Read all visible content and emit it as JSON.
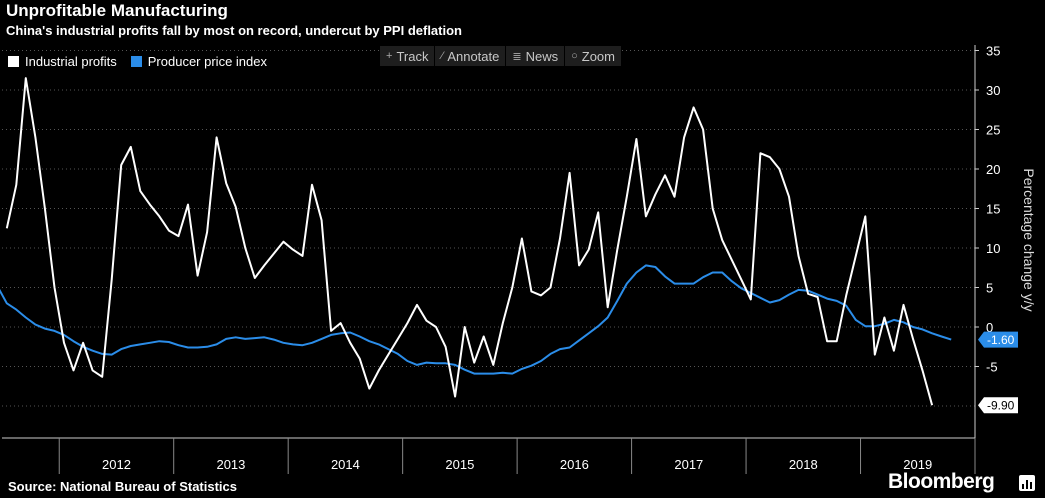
{
  "title": "Unprofitable Manufacturing",
  "subtitle": "China's industrial profits fall by most on record, undercut by PPI deflation",
  "toolbar": [
    {
      "icon": "crosshair-icon",
      "glyph": "+",
      "label": "Track"
    },
    {
      "icon": "pencil-icon",
      "glyph": "⁄",
      "label": "Annotate"
    },
    {
      "icon": "news-icon",
      "glyph": "≣",
      "label": "News"
    },
    {
      "icon": "magnifier-icon",
      "glyph": "○",
      "label": "Zoom"
    }
  ],
  "source": "Source: National Bureau of Statistics",
  "brand": "Bloomberg",
  "colors": {
    "profits": "#ffffff",
    "ppi": "#2b8de9",
    "grid": "#555555"
  },
  "chart_data": {
    "type": "line",
    "title": "Unprofitable Manufacturing",
    "subtitle": "China's industrial profits fall by most on record, undercut by PPI deflation",
    "ylabel": "Percentage change y/y",
    "xlabel": "",
    "ylim": [
      -14,
      35
    ],
    "yticks": [
      35,
      30,
      25,
      20,
      15,
      10,
      5,
      0,
      -5
    ],
    "tick_labels_y": [
      "35",
      "30",
      "25",
      "20",
      "15",
      "10",
      "5",
      "0",
      "-5"
    ],
    "grid": "horizontal dotted",
    "legend_position": "top-left",
    "x_start": "2011-06",
    "x_end": "2019-12",
    "year_labels": [
      "2012",
      "2013",
      "2014",
      "2015",
      "2016",
      "2017",
      "2018",
      "2019"
    ],
    "series": [
      {
        "name": "Industrial profits",
        "last_value_label": "-9.90",
        "points": [
          [
            "2011-07",
            12.5
          ],
          [
            "2011-08",
            18.0
          ],
          [
            "2011-09",
            31.5
          ],
          [
            "2011-10",
            24.0
          ],
          [
            "2011-11",
            15.0
          ],
          [
            "2011-12",
            5.0
          ],
          [
            "2012-01",
            -2.0
          ],
          [
            "2012-02",
            -5.5
          ],
          [
            "2012-03",
            -2.0
          ],
          [
            "2012-04",
            -5.5
          ],
          [
            "2012-05",
            -6.3
          ],
          [
            "2012-06",
            6.0
          ],
          [
            "2012-07",
            20.5
          ],
          [
            "2012-08",
            22.8
          ],
          [
            "2012-09",
            17.2
          ],
          [
            "2012-10",
            15.5
          ],
          [
            "2012-11",
            14.0
          ],
          [
            "2012-12",
            12.2
          ],
          [
            "2013-01",
            11.5
          ],
          [
            "2013-02",
            15.5
          ],
          [
            "2013-03",
            6.5
          ],
          [
            "2013-04",
            12.0
          ],
          [
            "2013-05",
            24.0
          ],
          [
            "2013-06",
            18.2
          ],
          [
            "2013-07",
            15.2
          ],
          [
            "2013-08",
            10.0
          ],
          [
            "2013-09",
            6.2
          ],
          [
            "2013-10",
            7.8
          ],
          [
            "2013-11",
            9.3
          ],
          [
            "2013-12",
            10.8
          ],
          [
            "2014-01",
            9.8
          ],
          [
            "2014-02",
            9.0
          ],
          [
            "2014-03",
            18.0
          ],
          [
            "2014-04",
            13.5
          ],
          [
            "2014-05",
            -0.5
          ],
          [
            "2014-06",
            0.5
          ],
          [
            "2014-07",
            -2.0
          ],
          [
            "2014-08",
            -4.0
          ],
          [
            "2014-09",
            -7.8
          ],
          [
            "2014-10",
            -5.5
          ],
          [
            "2014-11",
            -3.5
          ],
          [
            "2014-12",
            -1.5
          ],
          [
            "2015-01",
            0.5
          ],
          [
            "2015-02",
            2.8
          ],
          [
            "2015-03",
            0.8
          ],
          [
            "2015-04",
            0.0
          ],
          [
            "2015-05",
            -2.5
          ],
          [
            "2015-06",
            -8.8
          ],
          [
            "2015-07",
            0.0
          ],
          [
            "2015-08",
            -4.5
          ],
          [
            "2015-09",
            -1.2
          ],
          [
            "2015-10",
            -4.8
          ],
          [
            "2015-11",
            0.5
          ],
          [
            "2015-12",
            5.0
          ],
          [
            "2016-01",
            11.2
          ],
          [
            "2016-02",
            4.5
          ],
          [
            "2016-03",
            4.0
          ],
          [
            "2016-04",
            5.0
          ],
          [
            "2016-05",
            11.2
          ],
          [
            "2016-06",
            19.5
          ],
          [
            "2016-07",
            7.8
          ],
          [
            "2016-08",
            9.8
          ],
          [
            "2016-09",
            14.5
          ],
          [
            "2016-10",
            2.5
          ],
          [
            "2016-11",
            9.8
          ],
          [
            "2016-12",
            16.5
          ],
          [
            "2017-01",
            23.8
          ],
          [
            "2017-02",
            14.0
          ],
          [
            "2017-03",
            16.8
          ],
          [
            "2017-04",
            19.2
          ],
          [
            "2017-05",
            16.5
          ],
          [
            "2017-06",
            24.0
          ],
          [
            "2017-07",
            27.8
          ],
          [
            "2017-08",
            25.0
          ],
          [
            "2017-09",
            15.0
          ],
          [
            "2017-10",
            11.0
          ],
          [
            "2017-11",
            8.5
          ],
          [
            "2017-12",
            6.0
          ],
          [
            "2018-01",
            3.5
          ],
          [
            "2018-02",
            22.0
          ],
          [
            "2018-03",
            21.5
          ],
          [
            "2018-04",
            20.0
          ],
          [
            "2018-05",
            16.5
          ],
          [
            "2018-06",
            9.0
          ],
          [
            "2018-07",
            4.2
          ],
          [
            "2018-08",
            3.8
          ],
          [
            "2018-09",
            -1.8
          ],
          [
            "2018-10",
            -1.8
          ],
          [
            "2018-11",
            4.0
          ],
          [
            "2018-12",
            9.0
          ],
          [
            "2019-01",
            14.0
          ],
          [
            "2019-02",
            -3.5
          ],
          [
            "2019-03",
            1.2
          ],
          [
            "2019-04",
            -3.0
          ],
          [
            "2019-05",
            2.8
          ],
          [
            "2019-06",
            -1.5
          ],
          [
            "2019-07",
            -5.5
          ],
          [
            "2019-08",
            -9.9
          ]
        ]
      },
      {
        "name": "Producer price index",
        "last_value_label": "-1.60",
        "points": [
          [
            "2011-06",
            5.2
          ],
          [
            "2011-07",
            3.0
          ],
          [
            "2011-08",
            2.2
          ],
          [
            "2011-09",
            1.2
          ],
          [
            "2011-10",
            0.3
          ],
          [
            "2011-11",
            -0.2
          ],
          [
            "2011-12",
            -0.5
          ],
          [
            "2012-01",
            -1.0
          ],
          [
            "2012-02",
            -1.8
          ],
          [
            "2012-03",
            -2.5
          ],
          [
            "2012-04",
            -3.0
          ],
          [
            "2012-05",
            -3.4
          ],
          [
            "2012-06",
            -3.5
          ],
          [
            "2012-07",
            -2.8
          ],
          [
            "2012-08",
            -2.4
          ],
          [
            "2012-09",
            -2.2
          ],
          [
            "2012-10",
            -2.0
          ],
          [
            "2012-11",
            -1.8
          ],
          [
            "2012-12",
            -1.9
          ],
          [
            "2013-01",
            -2.3
          ],
          [
            "2013-02",
            -2.6
          ],
          [
            "2013-03",
            -2.6
          ],
          [
            "2013-04",
            -2.5
          ],
          [
            "2013-05",
            -2.2
          ],
          [
            "2013-06",
            -1.5
          ],
          [
            "2013-07",
            -1.3
          ],
          [
            "2013-08",
            -1.5
          ],
          [
            "2013-09",
            -1.4
          ],
          [
            "2013-10",
            -1.3
          ],
          [
            "2013-11",
            -1.6
          ],
          [
            "2013-12",
            -2.0
          ],
          [
            "2014-01",
            -2.2
          ],
          [
            "2014-02",
            -2.3
          ],
          [
            "2014-03",
            -2.0
          ],
          [
            "2014-04",
            -1.5
          ],
          [
            "2014-05",
            -1.0
          ],
          [
            "2014-06",
            -0.8
          ],
          [
            "2014-07",
            -0.7
          ],
          [
            "2014-08",
            -1.2
          ],
          [
            "2014-09",
            -1.8
          ],
          [
            "2014-10",
            -2.2
          ],
          [
            "2014-11",
            -2.8
          ],
          [
            "2014-12",
            -3.4
          ],
          [
            "2015-01",
            -4.3
          ],
          [
            "2015-02",
            -4.8
          ],
          [
            "2015-03",
            -4.5
          ],
          [
            "2015-04",
            -4.6
          ],
          [
            "2015-05",
            -4.6
          ],
          [
            "2015-06",
            -4.8
          ],
          [
            "2015-07",
            -5.4
          ],
          [
            "2015-08",
            -5.9
          ],
          [
            "2015-09",
            -5.9
          ],
          [
            "2015-10",
            -5.9
          ],
          [
            "2015-11",
            -5.8
          ],
          [
            "2015-12",
            -5.9
          ],
          [
            "2016-01",
            -5.3
          ],
          [
            "2016-02",
            -4.9
          ],
          [
            "2016-03",
            -4.3
          ],
          [
            "2016-04",
            -3.4
          ],
          [
            "2016-05",
            -2.8
          ],
          [
            "2016-06",
            -2.6
          ],
          [
            "2016-07",
            -1.7
          ],
          [
            "2016-08",
            -0.8
          ],
          [
            "2016-09",
            0.1
          ],
          [
            "2016-10",
            1.2
          ],
          [
            "2016-11",
            3.3
          ],
          [
            "2016-12",
            5.5
          ],
          [
            "2017-01",
            6.9
          ],
          [
            "2017-02",
            7.8
          ],
          [
            "2017-03",
            7.6
          ],
          [
            "2017-04",
            6.4
          ],
          [
            "2017-05",
            5.5
          ],
          [
            "2017-06",
            5.5
          ],
          [
            "2017-07",
            5.5
          ],
          [
            "2017-08",
            6.3
          ],
          [
            "2017-09",
            6.9
          ],
          [
            "2017-10",
            6.9
          ],
          [
            "2017-11",
            5.8
          ],
          [
            "2017-12",
            4.9
          ],
          [
            "2018-01",
            4.3
          ],
          [
            "2018-02",
            3.7
          ],
          [
            "2018-03",
            3.1
          ],
          [
            "2018-04",
            3.4
          ],
          [
            "2018-05",
            4.1
          ],
          [
            "2018-06",
            4.7
          ],
          [
            "2018-07",
            4.6
          ],
          [
            "2018-08",
            4.1
          ],
          [
            "2018-09",
            3.6
          ],
          [
            "2018-10",
            3.3
          ],
          [
            "2018-11",
            2.7
          ],
          [
            "2018-12",
            0.9
          ],
          [
            "2019-01",
            0.1
          ],
          [
            "2019-02",
            0.1
          ],
          [
            "2019-03",
            0.4
          ],
          [
            "2019-04",
            0.9
          ],
          [
            "2019-05",
            0.6
          ],
          [
            "2019-06",
            0.0
          ],
          [
            "2019-07",
            -0.3
          ],
          [
            "2019-08",
            -0.8
          ],
          [
            "2019-09",
            -1.2
          ],
          [
            "2019-10",
            -1.6
          ]
        ]
      }
    ]
  }
}
